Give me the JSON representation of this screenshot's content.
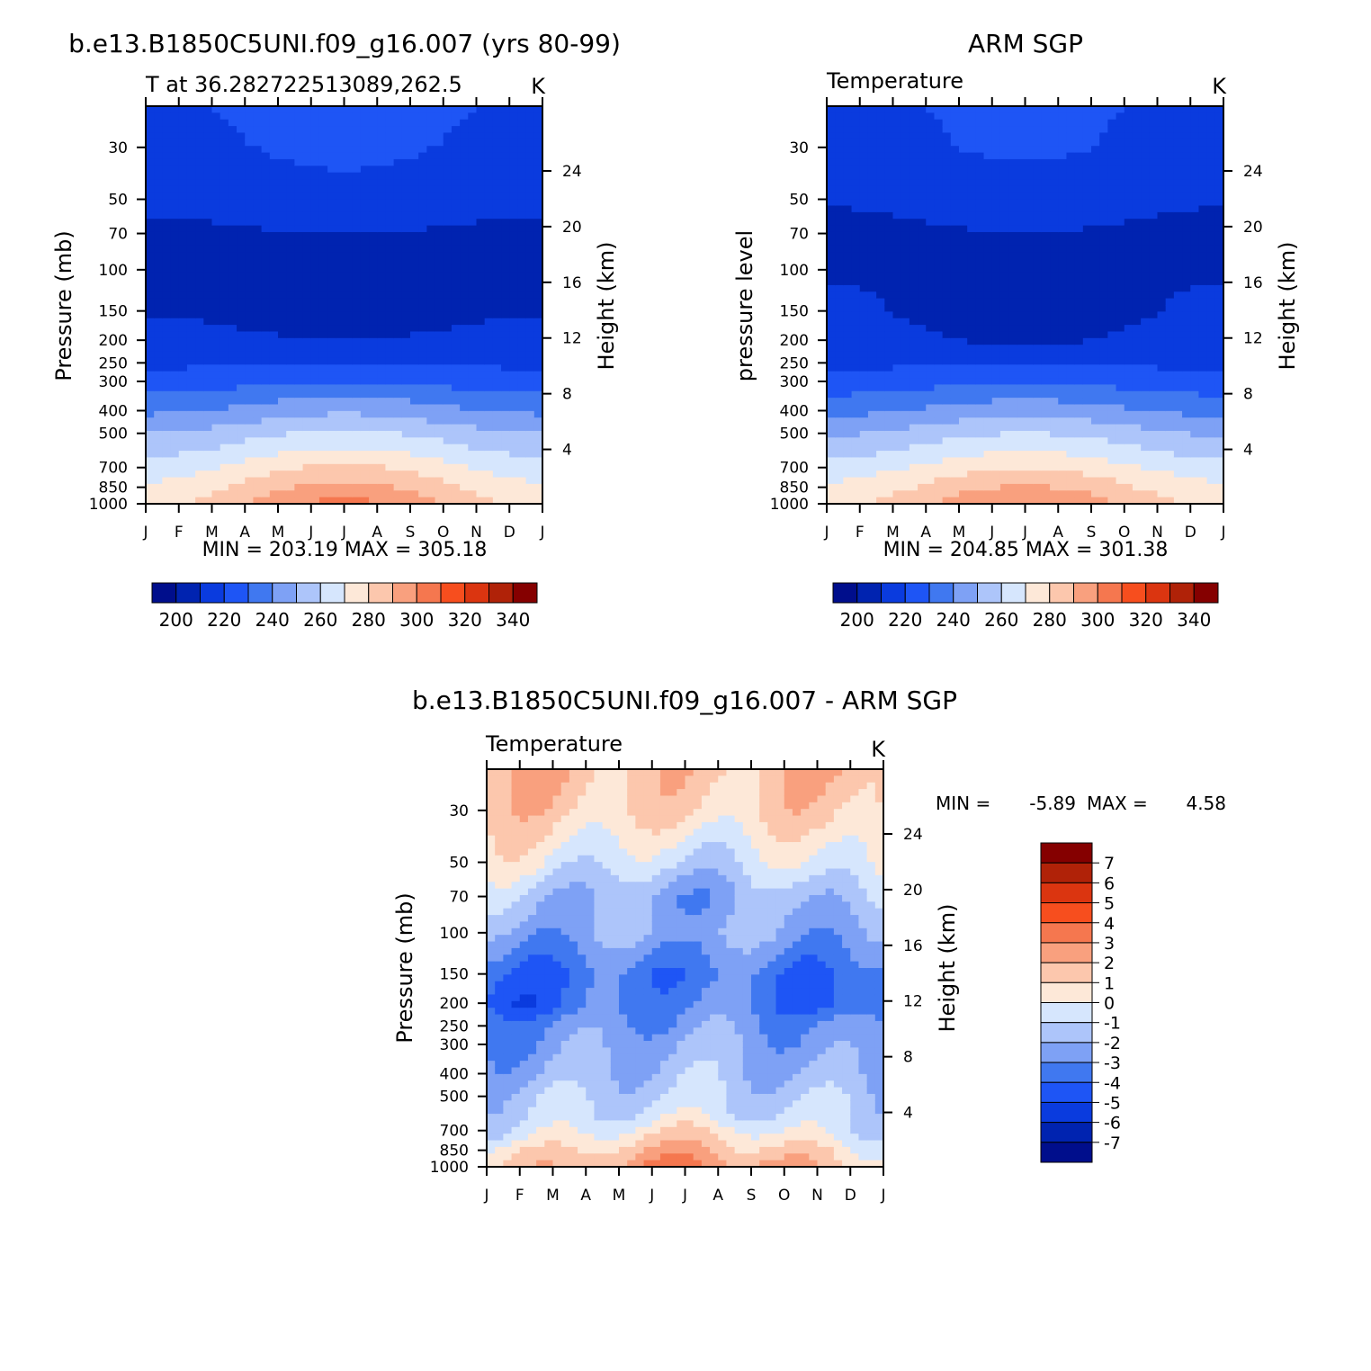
{
  "chart_data": [
    {
      "type": "heatmap",
      "title": "b.e13.B1850C5UNI.f09_g16.007 (yrs 80-99)",
      "subtitle_left": "T at 36.282722513089,262.5",
      "subtitle_right": "K",
      "ylabel": "Pressure (mb)",
      "ylabel_right": "Height (km)",
      "x_ticks": [
        "J",
        "F",
        "M",
        "A",
        "M",
        "J",
        "J",
        "A",
        "S",
        "O",
        "N",
        "D",
        "J"
      ],
      "y_ticks": [
        30,
        50,
        70,
        100,
        150,
        200,
        250,
        300,
        400,
        500,
        700,
        850,
        1000
      ],
      "y_ticks_right": [
        24,
        20,
        16,
        12,
        8,
        4
      ],
      "ylim": [
        20,
        1000
      ],
      "y_scale": "log",
      "stats": "MIN = 203.19 MAX = 305.18",
      "colorbar": {
        "orientation": "horizontal",
        "labels": [
          "200",
          "220",
          "240",
          "260",
          "280",
          "300",
          "320",
          "340"
        ],
        "levels": [
          190,
          200,
          210,
          220,
          230,
          240,
          250,
          260,
          270,
          280,
          290,
          300,
          310,
          320,
          330,
          340,
          350
        ]
      },
      "profile": {
        "pressure": [
          20,
          30,
          50,
          70,
          100,
          150,
          200,
          250,
          300,
          400,
          500,
          600,
          700,
          850,
          1000
        ],
        "temperature_jan": [
          218,
          216,
          212,
          208,
          206,
          209,
          214,
          218,
          224,
          238,
          250,
          258,
          265,
          272,
          278
        ],
        "temperature_jul": [
          226,
          223,
          216,
          210,
          206,
          204,
          210,
          220,
          230,
          248,
          262,
          272,
          282,
          293,
          303
        ]
      }
    },
    {
      "type": "heatmap",
      "title": "ARM SGP",
      "subtitle_left": "Temperature",
      "subtitle_right": "K",
      "ylabel": "pressure level",
      "ylabel_right": "Height (km)",
      "x_ticks": [
        "J",
        "F",
        "M",
        "A",
        "M",
        "J",
        "J",
        "A",
        "S",
        "O",
        "N",
        "D",
        "J"
      ],
      "y_ticks": [
        30,
        50,
        70,
        100,
        150,
        200,
        250,
        300,
        400,
        500,
        700,
        850,
        1000
      ],
      "y_ticks_right": [
        24,
        20,
        16,
        12,
        8,
        4
      ],
      "ylim": [
        20,
        1000
      ],
      "y_scale": "log",
      "stats": "MIN = 204.85 MAX = 301.38",
      "colorbar": {
        "orientation": "horizontal",
        "labels": [
          "200",
          "220",
          "240",
          "260",
          "280",
          "300",
          "320",
          "340"
        ],
        "levels": [
          190,
          200,
          210,
          220,
          230,
          240,
          250,
          260,
          270,
          280,
          290,
          300,
          310,
          320,
          330,
          340,
          350
        ]
      },
      "profile": {
        "pressure": [
          20,
          30,
          50,
          70,
          100,
          150,
          200,
          250,
          300,
          400,
          500,
          600,
          700,
          850,
          1000
        ],
        "temperature_jan": [
          216,
          214,
          211,
          207,
          209,
          212,
          215,
          218,
          224,
          237,
          249,
          257,
          265,
          272,
          278
        ],
        "temperature_jul": [
          224,
          222,
          215,
          210,
          206,
          203,
          208,
          218,
          229,
          246,
          260,
          270,
          280,
          291,
          300
        ]
      }
    },
    {
      "type": "heatmap",
      "title": "b.e13.B1850C5UNI.f09_g16.007 - ARM SGP",
      "subtitle_left": "Temperature",
      "subtitle_right": "K",
      "ylabel": "Pressure (mb)",
      "ylabel_right": "Height (km)",
      "x_ticks": [
        "J",
        "F",
        "M",
        "A",
        "M",
        "J",
        "J",
        "A",
        "S",
        "O",
        "N",
        "D",
        "J"
      ],
      "y_ticks": [
        30,
        50,
        70,
        100,
        150,
        200,
        250,
        300,
        400,
        500,
        700,
        850,
        1000
      ],
      "y_ticks_right": [
        24,
        20,
        16,
        12,
        8,
        4
      ],
      "ylim": [
        20,
        1000
      ],
      "y_scale": "log",
      "stats_min_label": "MIN =",
      "stats_min": "-5.89",
      "stats_max_label": "MAX =",
      "stats_max": "4.58",
      "colorbar": {
        "orientation": "vertical",
        "labels": [
          "7",
          "6",
          "5",
          "4",
          "3",
          "2",
          "1",
          "0",
          "-1",
          "-2",
          "-3",
          "-4",
          "-5",
          "-6",
          "-7"
        ],
        "levels": [
          -8,
          -7,
          -6,
          -5,
          -4,
          -3,
          -2,
          -1,
          0,
          1,
          2,
          3,
          4,
          5,
          6,
          7,
          8
        ]
      },
      "profile": {
        "pressure": [
          20,
          30,
          50,
          70,
          100,
          150,
          200,
          250,
          300,
          400,
          500,
          600,
          700,
          850,
          1000
        ],
        "difference_jan": [
          2.0,
          1.5,
          0.2,
          -1.2,
          -2.5,
          -4.0,
          -4.5,
          -3.0,
          -2.8,
          -2.2,
          -1.5,
          -1.2,
          -1.0,
          0.4,
          1.0
        ],
        "difference_jul": [
          1.5,
          1.0,
          -1.0,
          -2.5,
          -2.0,
          -3.5,
          -3.0,
          -2.5,
          -2.0,
          -1.5,
          -1.0,
          -0.5,
          0.8,
          2.0,
          3.2
        ]
      }
    }
  ],
  "colors": {
    "temperature_scale": [
      "#000e8c",
      "#0023b0",
      "#0a3bde",
      "#1e55f5",
      "#4078f0",
      "#7ea1f5",
      "#adc5fa",
      "#d6e6fd",
      "#fde8d8",
      "#fcc7ad",
      "#f9a07e",
      "#f5774f",
      "#f74e1e",
      "#db3510",
      "#b02208",
      "#850000"
    ],
    "difference_scale": [
      "#000e8c",
      "#0023b0",
      "#0a3bde",
      "#1e55f5",
      "#4078f0",
      "#7ea1f5",
      "#adc5fa",
      "#d6e6fd",
      "#fde8d8",
      "#fcc7ad",
      "#f9a07e",
      "#f5774f",
      "#f74e1e",
      "#db3510",
      "#b02208",
      "#850000"
    ]
  }
}
